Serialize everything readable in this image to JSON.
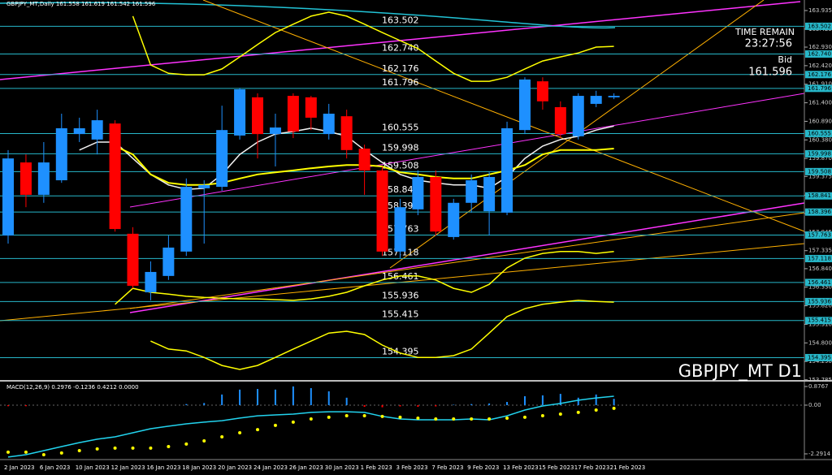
{
  "chart_data": [
    {
      "type": "candlestick",
      "title": "GBPJPY_MT,Daily  161.558 161.619 161.542 161.596",
      "watermark": "GBPJPY_MT D1",
      "annotations": [
        "TIME REMAIN",
        "23:27:56",
        "Bid"
      ],
      "bid": 161.596,
      "categories": [
        "2 Jan 2023",
        null,
        "6 Jan 2023",
        null,
        "10 Jan 2023",
        null,
        "12 Jan 2023",
        null,
        "16 Jan 2023",
        null,
        "18 Jan 2023",
        null,
        "20 Jan 2023",
        null,
        "24 Jan 2023",
        null,
        "26 Jan 2023",
        null,
        "30 Jan 2023",
        null,
        "1 Feb 2023",
        null,
        "3 Feb 2023",
        null,
        "7 Feb 2023",
        null,
        "9 Feb 2023",
        null,
        "13 Feb 2023",
        null,
        "15 Feb 2023",
        null,
        "17 Feb 2023",
        null,
        "21 Feb 2023"
      ],
      "open": [
        157.75,
        159.76,
        158.87,
        159.27,
        160.54,
        160.39,
        160.83,
        157.8,
        156.19,
        156.64,
        157.31,
        159.05,
        159.09,
        160.5,
        161.55,
        160.54,
        161.59,
        161.55,
        160.54,
        161.03,
        160.14,
        159.54,
        157.31,
        158.47,
        159.36,
        157.71,
        158.65,
        158.42,
        158.38,
        160.65,
        161.99,
        161.28,
        160.48,
        161.37,
        161.55
      ],
      "high": [
        160.1,
        159.98,
        160.32,
        161.1,
        160.99,
        161.21,
        160.92,
        157.98,
        157.04,
        157.75,
        159.32,
        159.27,
        161.32,
        161.81,
        161.66,
        161.1,
        161.66,
        161.59,
        161.37,
        161.21,
        160.25,
        159.65,
        158.76,
        159.54,
        159.54,
        158.76,
        159.43,
        159.49,
        160.88,
        162.1,
        162.1,
        161.44,
        161.66,
        161.73,
        161.66
      ],
      "low": [
        157.53,
        158.53,
        158.65,
        159.2,
        160.32,
        159.98,
        157.86,
        156.3,
        155.97,
        156.53,
        157.19,
        157.53,
        158.98,
        160.39,
        159.87,
        159.65,
        160.43,
        160.65,
        160.39,
        159.87,
        158.87,
        157.19,
        157.13,
        158.31,
        157.75,
        157.64,
        158.38,
        157.75,
        158.31,
        160.54,
        161.21,
        160.43,
        160.39,
        161.28,
        161.5
      ],
      "close": [
        159.87,
        158.87,
        159.76,
        160.7,
        160.7,
        160.92,
        157.93,
        156.37,
        156.75,
        157.42,
        159.09,
        159.14,
        160.65,
        161.77,
        160.54,
        160.72,
        160.61,
        160.99,
        161.1,
        160.1,
        159.54,
        157.31,
        158.53,
        159.36,
        157.86,
        158.65,
        159.27,
        159.36,
        160.7,
        162.04,
        161.44,
        160.54,
        161.59,
        161.59,
        161.59
      ],
      "up_color": "#1e90ff",
      "down_color": "#ff0000",
      "overlays": [
        {
          "color": "#f2f2f2",
          "values": [
            null,
            null,
            null,
            null,
            160.1,
            160.32,
            160.32,
            159.87,
            159.43,
            159.14,
            159.02,
            159.05,
            159.43,
            159.98,
            160.32,
            160.54,
            160.61,
            160.7,
            160.61,
            160.48,
            160.1,
            159.76,
            159.43,
            159.27,
            159.2,
            159.14,
            159.14,
            159.05,
            159.36,
            159.87,
            160.21,
            160.39,
            160.48,
            160.65,
            160.76
          ]
        },
        {
          "color": "#ffff00",
          "values": [
            null,
            null,
            null,
            null,
            null,
            null,
            160.21,
            159.98,
            159.43,
            159.2,
            159.14,
            159.14,
            159.2,
            159.32,
            159.43,
            159.49,
            159.54,
            159.6,
            159.65,
            159.69,
            159.69,
            159.65,
            159.49,
            159.43,
            159.36,
            159.32,
            159.32,
            159.43,
            159.54,
            159.69,
            159.98,
            160.1,
            160.1,
            160.1,
            160.14
          ]
        },
        {
          "color": "#ffff00",
          "values": [
            null,
            null,
            null,
            null,
            null,
            null,
            155.86,
            156.3,
            156.19,
            156.14,
            156.08,
            156.05,
            156.03,
            156.01,
            156.01,
            155.99,
            155.97,
            156.01,
            156.08,
            156.19,
            156.37,
            156.53,
            156.64,
            156.64,
            156.53,
            156.3,
            156.19,
            156.41,
            156.86,
            157.13,
            157.26,
            157.31,
            157.31,
            157.26,
            157.31
          ]
        },
        {
          "color": "#ffff00",
          "values": [
            null,
            null,
            null,
            null,
            null,
            null,
            null,
            null,
            154.85,
            154.63,
            154.58,
            154.4,
            154.18,
            154.07,
            154.18,
            154.4,
            154.63,
            154.85,
            155.07,
            155.12,
            155.03,
            154.74,
            154.52,
            154.4,
            154.4,
            154.45,
            154.63,
            155.07,
            155.52,
            155.74,
            155.86,
            155.92,
            155.97,
            155.94,
            155.92
          ]
        },
        {
          "color": "#ffff00",
          "values": [
            null,
            null,
            null,
            null,
            null,
            null,
            null,
            163.78,
            162.44,
            162.21,
            162.17,
            162.17,
            162.33,
            162.66,
            163.0,
            163.33,
            163.56,
            163.78,
            163.89,
            163.78,
            163.56,
            163.33,
            163.11,
            162.89,
            162.55,
            162.21,
            161.99,
            161.99,
            162.1,
            162.33,
            162.55,
            162.66,
            162.77,
            162.93,
            162.95
          ]
        }
      ],
      "levels": {
        "color": "#27b7c9",
        "values": [
          163.502,
          162.74,
          162.176,
          161.796,
          160.555,
          159.998,
          159.508,
          158.841,
          158.396,
          157.763,
          157.118,
          156.461,
          155.936,
          155.415,
          154.395
        ],
        "value_labels": [
          "163.502",
          "162.740",
          "162.176",
          "161.796",
          "160.555",
          "159.998",
          "159.508",
          "158.841",
          "158.396",
          "157.763",
          "157.118",
          "156.461",
          "155.936",
          "155.415",
          "154.395"
        ]
      },
      "ylim": [
        153.78,
        164.225
      ],
      "yticks": [
        163.935,
        163.425,
        {
          "value": 162.93,
          "label": "162.930"
        },
        {
          "value": 162.42,
          "label": "162.420"
        },
        {
          "value": 161.91,
          "label": "161.910"
        },
        {
          "value": 161.4,
          "label": "161.400"
        },
        {
          "value": 160.89,
          "label": "160.890"
        },
        {
          "value": 160.38,
          "label": "160.380"
        },
        {
          "value": 159.87,
          "label": "159.870"
        },
        159.375,
        {
          "value": 158.86,
          "label": "158.860"
        },
        158.355,
        157.845,
        157.335,
        {
          "value": 156.84,
          "label": "156.840"
        },
        {
          "value": 156.33,
          "label": "156.330"
        },
        {
          "value": 155.82,
          "label": "155.820"
        },
        {
          "value": 155.31,
          "label": "155.310"
        },
        {
          "value": 154.8,
          "label": "154.800"
        },
        {
          "value": 154.29,
          "label": "154.290"
        },
        153.785
      ]
    },
    {
      "type": "macd",
      "title": "MACD(12,26,9) 0.2976 -0.1236 0.4212 0.0000",
      "histogram": {
        "color": "#1e90ff",
        "negative_color": "#ff0000",
        "values": [
          -0.05,
          -0.05,
          0,
          0,
          0,
          0,
          0,
          0,
          0,
          0,
          0.05,
          0.1,
          0.5,
          0.73,
          0.76,
          0.73,
          0.88,
          0.8,
          0.65,
          0.35,
          -0.08,
          -0.1,
          -0.06,
          -0.08,
          -0.06,
          0.02,
          0.05,
          0.08,
          0.15,
          0.42,
          0.46,
          0.53,
          0.35,
          0.5,
          0.2976
        ]
      },
      "line": {
        "color": "#22d3ee",
        "values": [
          -2.44,
          -2.33,
          -2.14,
          -1.95,
          -1.76,
          -1.6,
          -1.49,
          -1.3,
          -1.11,
          -0.99,
          -0.88,
          -0.8,
          -0.73,
          -0.61,
          -0.5,
          -0.46,
          -0.42,
          -0.34,
          -0.31,
          -0.31,
          -0.34,
          -0.53,
          -0.65,
          -0.69,
          -0.69,
          -0.69,
          -0.65,
          -0.69,
          -0.5,
          -0.23,
          -0.04,
          0.08,
          0.23,
          0.34,
          0.42
        ]
      },
      "dots": {
        "color": "#ffff00",
        "values": [
          -2.21,
          -2.21,
          -2.33,
          -2.25,
          -2.14,
          -2.06,
          -2.02,
          -2.02,
          -2.02,
          -1.95,
          -1.83,
          -1.68,
          -1.49,
          -1.3,
          -1.15,
          -0.95,
          -0.8,
          -0.65,
          -0.57,
          -0.5,
          -0.5,
          -0.53,
          -0.57,
          -0.61,
          -0.65,
          -0.65,
          -0.65,
          -0.65,
          -0.61,
          -0.57,
          -0.5,
          -0.42,
          -0.34,
          -0.23,
          -0.15
        ]
      },
      "ylim": [
        -2.56,
        1.03
      ],
      "yticks": [
        0.8767,
        {
          "value": 0,
          "label": "0.00"
        },
        -2.2914
      ]
    }
  ]
}
